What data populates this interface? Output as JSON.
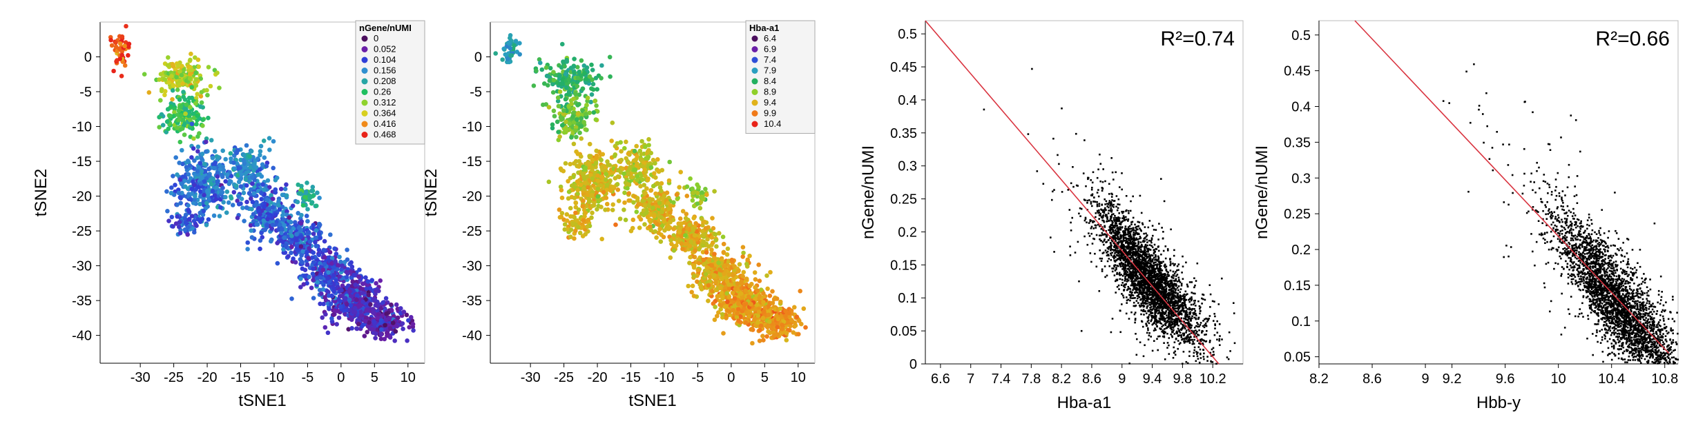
{
  "chart_data": [
    {
      "type": "scatter",
      "xlabel": "tSNE1",
      "ylabel": "tSNE2",
      "xlim": [
        -36,
        12.5
      ],
      "ylim": [
        -44,
        5
      ],
      "xticks": [
        -30,
        -25,
        -20,
        -15,
        -10,
        -5,
        0,
        5,
        10
      ],
      "yticks": [
        0,
        -5,
        -10,
        -15,
        -20,
        -25,
        -30,
        -35,
        -40
      ],
      "legend": {
        "title": "nGene/nUMI",
        "placement": "top-right",
        "entries": [
          "0",
          "0.052",
          "0.104",
          "0.156",
          "0.208",
          "0.26",
          "0.312",
          "0.364",
          "0.416",
          "0.468"
        ],
        "colors": [
          "#4b0f5e",
          "#6a1fa8",
          "#2f3fd8",
          "#2f8fd0",
          "#27a6a6",
          "#1fbf60",
          "#8fd22e",
          "#d8cf1f",
          "#f08a1a",
          "#e8231a"
        ]
      }
    },
    {
      "type": "scatter",
      "xlabel": "tSNE1",
      "ylabel": "tSNE2",
      "xlim": [
        -36,
        12.5
      ],
      "ylim": [
        -44,
        5
      ],
      "xticks": [
        -30,
        -25,
        -20,
        -15,
        -10,
        -5,
        0,
        5,
        10
      ],
      "yticks": [
        0,
        -5,
        -10,
        -15,
        -20,
        -25,
        -30,
        -35,
        -40
      ],
      "legend": {
        "title": "Hba-a1",
        "placement": "top-right",
        "entries": [
          "6.4",
          "6.9",
          "7.4",
          "7.9",
          "8.4",
          "8.9",
          "9.4",
          "9.9",
          "10.4"
        ],
        "colors": [
          "#4b0f5e",
          "#6a1fa8",
          "#2f4fd8",
          "#2a9fc0",
          "#22b060",
          "#8fcf2a",
          "#e0b21a",
          "#f07a1a",
          "#e8231a"
        ]
      }
    },
    {
      "type": "scatter",
      "xlabel": "Hba-a1",
      "ylabel": "nGene/nUMI",
      "xlim": [
        6.4,
        10.6
      ],
      "ylim": [
        0,
        0.52
      ],
      "xticks": [
        "6.6",
        "7",
        "7.4",
        "7.8",
        "8.2",
        "8.6",
        "9",
        "9.4",
        "9.8",
        "10.2"
      ],
      "yticks": [
        "0.5",
        "0.45",
        "0.4",
        "0.35",
        "0.3",
        "0.25",
        "0.2",
        "0.15",
        "0.1",
        "0.05",
        "0"
      ],
      "annotation": "R²=0.74",
      "fit_line": {
        "x": [
          6.4,
          10.28
        ],
        "y": [
          0.52,
          0.0
        ],
        "color": "#d9333f"
      },
      "cloud": {
        "center": [
          9.35,
          0.125
        ],
        "slope": -0.11
      }
    },
    {
      "type": "scatter",
      "xlabel": "Hbb-y",
      "ylabel": "nGene/nUMI",
      "xlim": [
        8.2,
        10.9
      ],
      "ylim": [
        0.04,
        0.52
      ],
      "xticks": [
        "8.2",
        "8.6",
        "9",
        "9.2",
        "9.6",
        "10",
        "10.4",
        "10.8"
      ],
      "yticks": [
        "0.5",
        "0.45",
        "0.4",
        "0.35",
        "0.3",
        "0.25",
        "0.2",
        "0.15",
        "0.1",
        "0.05"
      ],
      "annotation": "R²=0.66",
      "fit_line": {
        "x": [
          8.47,
          10.83
        ],
        "y": [
          0.52,
          0.055
        ],
        "color": "#d9333f"
      },
      "cloud": {
        "center": [
          10.45,
          0.12
        ],
        "slope": -0.2
      }
    }
  ]
}
